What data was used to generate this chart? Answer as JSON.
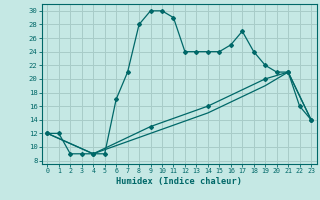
{
  "title": "",
  "xlabel": "Humidex (Indice chaleur)",
  "background_color": "#c5e8e4",
  "grid_color": "#a8ccc8",
  "line_color": "#006868",
  "xlim": [
    -0.5,
    23.5
  ],
  "ylim": [
    7.5,
    31
  ],
  "xticks": [
    0,
    1,
    2,
    3,
    4,
    5,
    6,
    7,
    8,
    9,
    10,
    11,
    12,
    13,
    14,
    15,
    16,
    17,
    18,
    19,
    20,
    21,
    22,
    23
  ],
  "yticks": [
    8,
    10,
    12,
    14,
    16,
    18,
    20,
    22,
    24,
    26,
    28,
    30
  ],
  "series1_x": [
    0,
    1,
    2,
    3,
    4,
    5,
    6,
    7,
    8,
    9,
    10,
    11,
    12,
    13,
    14,
    15,
    16,
    17,
    18,
    19,
    20,
    21,
    22,
    23
  ],
  "series1_y": [
    12,
    12,
    9,
    9,
    9,
    9,
    17,
    21,
    28,
    30,
    30,
    29,
    24,
    24,
    24,
    24,
    25,
    27,
    24,
    22,
    21,
    21,
    16,
    14
  ],
  "series2_x": [
    0,
    4,
    9,
    14,
    19,
    21,
    23
  ],
  "series2_y": [
    12,
    9,
    13,
    16,
    20,
    21,
    14
  ],
  "series3_x": [
    0,
    4,
    9,
    14,
    19,
    21,
    23
  ],
  "series3_y": [
    12,
    9,
    12,
    15,
    19,
    21,
    14
  ]
}
